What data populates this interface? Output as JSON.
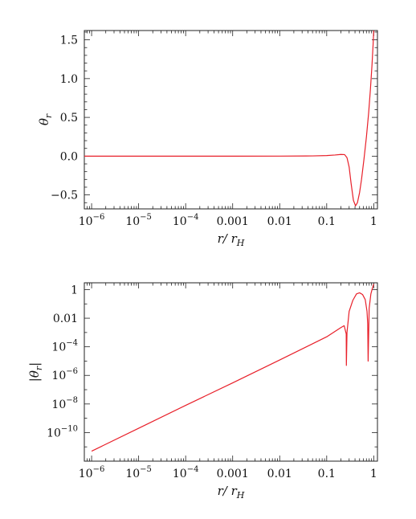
{
  "chart_data": [
    {
      "type": "line",
      "title": "",
      "xlabel": "r/ r_H",
      "xlabel_parts": {
        "base": "r/ r",
        "sub": "H"
      },
      "ylabel": "θ_r",
      "ylabel_parts": {
        "base": "θ",
        "sub": "r"
      },
      "x_scale": "log",
      "y_scale": "linear",
      "xlim": [
        7e-07,
        1.2
      ],
      "ylim": [
        -0.68,
        1.62
      ],
      "x_ticks": [
        {
          "value": 1e-06,
          "base": "10",
          "exp": "−6"
        },
        {
          "value": 1e-05,
          "base": "10",
          "exp": "−5"
        },
        {
          "value": 0.0001,
          "base": "10",
          "exp": "−4"
        },
        {
          "value": 0.001,
          "base": "0.001",
          "exp": ""
        },
        {
          "value": 0.01,
          "base": "0.01",
          "exp": ""
        },
        {
          "value": 0.1,
          "base": "0.1",
          "exp": ""
        },
        {
          "value": 1,
          "base": "1",
          "exp": ""
        }
      ],
      "y_ticks": [
        {
          "value": -0.5,
          "label": "−0.5"
        },
        {
          "value": 0.0,
          "label": "0.0"
        },
        {
          "value": 0.5,
          "label": "0.5"
        },
        {
          "value": 1.0,
          "label": "1.0"
        },
        {
          "value": 1.5,
          "label": "1.5"
        }
      ],
      "series": [
        {
          "color": "#e8202a",
          "x": [
            7e-07,
            1e-06,
            1e-05,
            0.0001,
            0.001,
            0.01,
            0.05,
            0.1,
            0.15,
            0.2,
            0.24,
            0.27,
            0.3,
            0.33,
            0.37,
            0.41,
            0.45,
            0.5,
            0.55,
            0.62,
            0.7,
            0.78,
            0.85,
            0.92,
            0.97,
            1.0
          ],
          "y": [
            0,
            0,
            0,
            0,
            0,
            0.0005,
            0.003,
            0.008,
            0.015,
            0.022,
            0.02,
            -0.02,
            -0.14,
            -0.35,
            -0.57,
            -0.64,
            -0.6,
            -0.47,
            -0.3,
            -0.04,
            0.25,
            0.56,
            0.86,
            1.18,
            1.44,
            1.62
          ]
        }
      ]
    },
    {
      "type": "line",
      "title": "",
      "xlabel": "r/ r_H",
      "xlabel_parts": {
        "base": "r/ r",
        "sub": "H"
      },
      "ylabel": "|θ_r|",
      "ylabel_parts": {
        "pre": "|θ",
        "sub": "r",
        "post": "|"
      },
      "x_scale": "log",
      "y_scale": "log",
      "xlim": [
        7e-07,
        1.2
      ],
      "ylim": [
        1e-12,
        3.0
      ],
      "x_ticks": [
        {
          "value": 1e-06,
          "base": "10",
          "exp": "−6"
        },
        {
          "value": 1e-05,
          "base": "10",
          "exp": "−5"
        },
        {
          "value": 0.0001,
          "base": "10",
          "exp": "−4"
        },
        {
          "value": 0.001,
          "base": "0.001",
          "exp": ""
        },
        {
          "value": 0.01,
          "base": "0.01",
          "exp": ""
        },
        {
          "value": 0.1,
          "base": "0.1",
          "exp": ""
        },
        {
          "value": 1,
          "base": "1",
          "exp": ""
        }
      ],
      "y_ticks": [
        {
          "value": 1e-10,
          "base": "10",
          "exp": "−10"
        },
        {
          "value": 1e-08,
          "base": "10",
          "exp": "−8"
        },
        {
          "value": 1e-06,
          "base": "10",
          "exp": "−6"
        },
        {
          "value": 0.0001,
          "base": "10",
          "exp": "−4"
        },
        {
          "value": 0.01,
          "base": "0.01",
          "exp": ""
        },
        {
          "value": 1,
          "base": "1",
          "exp": ""
        }
      ],
      "series": [
        {
          "color": "#e8202a",
          "x": [
            1e-06,
            1e-05,
            0.0001,
            0.001,
            0.01,
            0.1,
            0.2,
            0.235,
            0.26,
            0.262,
            0.27,
            0.3,
            0.36,
            0.43,
            0.5,
            0.58,
            0.66,
            0.72,
            0.745,
            0.76,
            0.8,
            0.87,
            0.94,
            1.0
          ],
          "y": [
            5e-12,
            2e-10,
            8e-09,
            3e-07,
            1.2e-05,
            0.0005,
            0.0022,
            0.003,
            0.0008,
            5e-06,
            0.001,
            0.03,
            0.18,
            0.5,
            0.6,
            0.45,
            0.2,
            0.03,
            0.004,
            1e-05,
            0.05,
            0.5,
            1.3,
            2.5
          ]
        }
      ]
    }
  ]
}
